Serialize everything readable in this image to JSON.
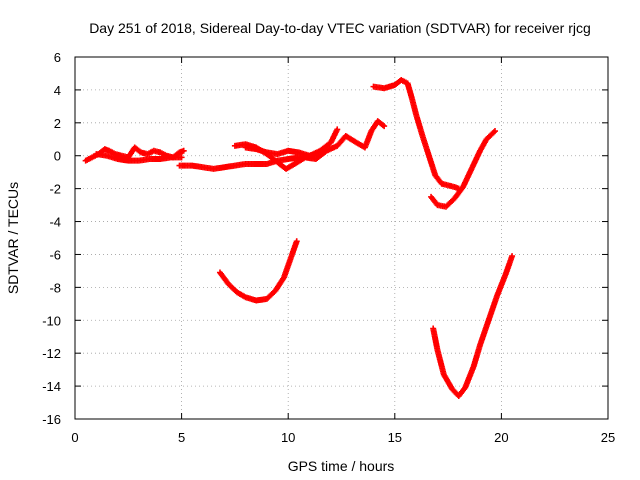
{
  "chart_data": {
    "type": "scatter",
    "title": "Day 251 of 2018, Sidereal Day-to-day VTEC variation (SDTVAR) for receiver rjcg",
    "xlabel": "GPS time / hours",
    "ylabel": "SDTVAR / TECUs",
    "xlim": [
      0,
      25
    ],
    "ylim": [
      -16,
      6
    ],
    "xticks": [
      0,
      5,
      10,
      15,
      20,
      25
    ],
    "yticks": [
      -16,
      -14,
      -12,
      -10,
      -8,
      -6,
      -4,
      -2,
      0,
      2,
      4,
      6
    ],
    "grid": true,
    "legend": "none",
    "marker": "plus",
    "color": "#ff0000",
    "series": [
      {
        "x": [
          0.5,
          0.8,
          1.1,
          1.4,
          1.6,
          1.9,
          2.2,
          2.5,
          2.8,
          3.1,
          3.4,
          3.7,
          4.0,
          4.3,
          4.6,
          4.9,
          5.1
        ],
        "y": [
          -0.3,
          -0.1,
          0.1,
          0.4,
          0.3,
          0.1,
          0.0,
          -0.1,
          0.5,
          0.2,
          0.1,
          0.3,
          0.2,
          0.0,
          -0.1,
          0.2,
          0.3
        ]
      },
      {
        "x": [
          1.0,
          1.5,
          2.0,
          2.5,
          3.0,
          3.5,
          4.0,
          4.5,
          5.0
        ],
        "y": [
          0.1,
          0.0,
          -0.2,
          -0.3,
          -0.3,
          -0.2,
          -0.2,
          -0.1,
          -0.1
        ]
      },
      {
        "x": [
          4.9,
          5.5,
          6.0,
          6.5,
          7.0,
          7.5,
          8.0,
          8.5,
          9.0,
          9.5,
          10.0,
          10.5,
          11.0,
          11.5,
          12.0,
          12.3
        ],
        "y": [
          -0.6,
          -0.6,
          -0.7,
          -0.8,
          -0.7,
          -0.6,
          -0.5,
          -0.5,
          -0.5,
          -0.3,
          -0.2,
          -0.1,
          0.0,
          0.3,
          0.8,
          1.6
        ]
      },
      {
        "x": [
          7.5,
          8.0,
          8.5,
          9.0,
          9.5,
          9.9,
          10.3,
          10.8,
          11.3,
          11.8,
          12.3,
          12.7,
          13.2,
          13.6,
          13.9,
          14.2,
          14.5
        ],
        "y": [
          0.6,
          0.7,
          0.5,
          0.1,
          -0.4,
          -0.8,
          -0.5,
          -0.1,
          -0.2,
          0.3,
          0.6,
          1.2,
          0.8,
          0.5,
          1.5,
          2.1,
          1.8
        ]
      },
      {
        "x": [
          8.0,
          8.5,
          9.0,
          9.5,
          10.0,
          10.5,
          11.0,
          11.3
        ],
        "y": [
          0.5,
          0.4,
          0.2,
          0.1,
          0.3,
          0.2,
          0.0,
          0.1
        ]
      },
      {
        "x": [
          14.0,
          14.5,
          15.0,
          15.3,
          15.6,
          15.8,
          16.0,
          16.3,
          16.6,
          16.9,
          17.2,
          17.5,
          17.8,
          18.0
        ],
        "y": [
          4.2,
          4.1,
          4.3,
          4.6,
          4.4,
          3.5,
          2.5,
          1.2,
          0.0,
          -1.2,
          -1.7,
          -1.8,
          -1.9,
          -2.0
        ]
      },
      {
        "x": [
          16.7,
          17.0,
          17.4,
          17.8,
          18.2,
          18.6,
          19.0,
          19.3,
          19.7
        ],
        "y": [
          -2.5,
          -3.0,
          -3.1,
          -2.6,
          -1.9,
          -0.8,
          0.3,
          1.0,
          1.5
        ]
      },
      {
        "x": [
          6.8,
          7.2,
          7.6,
          8.0,
          8.5,
          9.0,
          9.4,
          9.8,
          10.1,
          10.4
        ],
        "y": [
          -7.1,
          -7.8,
          -8.3,
          -8.6,
          -8.8,
          -8.7,
          -8.2,
          -7.4,
          -6.3,
          -5.2
        ]
      },
      {
        "x": [
          16.8,
          17.0,
          17.3,
          17.7,
          18.0,
          18.3,
          18.7,
          19.0,
          19.4,
          19.8,
          20.2,
          20.5
        ],
        "y": [
          -10.5,
          -11.8,
          -13.3,
          -14.2,
          -14.6,
          -14.1,
          -12.8,
          -11.5,
          -10.0,
          -8.5,
          -7.2,
          -6.1
        ]
      }
    ]
  }
}
